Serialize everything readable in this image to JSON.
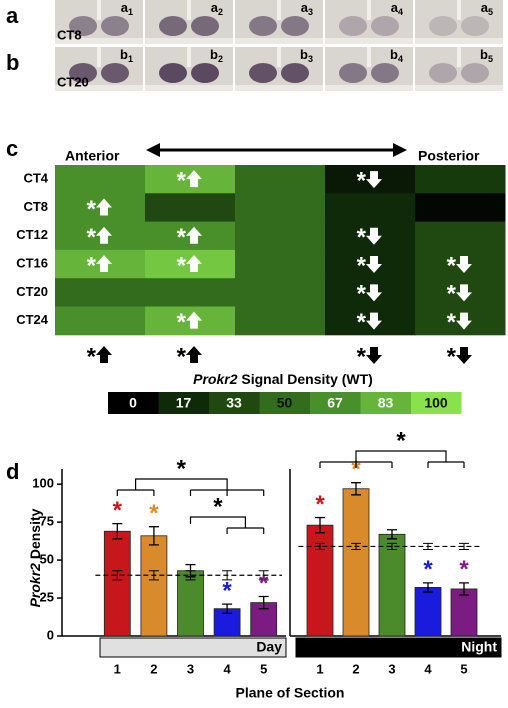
{
  "panel_a": {
    "letter": "a",
    "label": "CT8",
    "images": [
      {
        "letter": "a",
        "sub": "1"
      },
      {
        "letter": "a",
        "sub": "2"
      },
      {
        "letter": "a",
        "sub": "3"
      },
      {
        "letter": "a",
        "sub": "4"
      },
      {
        "letter": "a",
        "sub": "5"
      }
    ]
  },
  "panel_b": {
    "letter": "b",
    "label": "CT20",
    "images": [
      {
        "letter": "b",
        "sub": "1"
      },
      {
        "letter": "b",
        "sub": "2"
      },
      {
        "letter": "b",
        "sub": "3"
      },
      {
        "letter": "b",
        "sub": "4"
      },
      {
        "letter": "b",
        "sub": "5"
      }
    ]
  },
  "panel_c": {
    "letter": "c",
    "left_label": "Anterior",
    "right_label": "Posterior",
    "asterisk": "*",
    "rows": [
      "CT4",
      "CT8",
      "CT12",
      "CT16",
      "CT20",
      "CT24"
    ],
    "values": [
      [
        67,
        83,
        50,
        10,
        25
      ],
      [
        67,
        33,
        50,
        17,
        3
      ],
      [
        67,
        67,
        50,
        17,
        33
      ],
      [
        83,
        90,
        50,
        17,
        33
      ],
      [
        50,
        50,
        50,
        17,
        33
      ],
      [
        67,
        83,
        50,
        17,
        33
      ]
    ],
    "arrows": [
      [
        null,
        "up",
        null,
        "down",
        null
      ],
      [
        "up",
        null,
        null,
        null,
        null
      ],
      [
        "up",
        "up",
        null,
        "down",
        null
      ],
      [
        "up",
        "up",
        null,
        "down",
        "down"
      ],
      [
        null,
        null,
        null,
        "down",
        "down"
      ],
      [
        null,
        "up",
        null,
        "down",
        "down"
      ]
    ],
    "summary_arrows": [
      "up",
      "up",
      null,
      "down",
      "down"
    ],
    "colorbar": {
      "title_gene": "Prokr2",
      "title": "Signal Density (WT)",
      "ticks": [
        0,
        17,
        33,
        50,
        67,
        83,
        100
      ],
      "colors": [
        "#000000",
        "#0f2a08",
        "#1f4911",
        "#336c1d",
        "#4a902a",
        "#66b53a",
        "#88e24c"
      ]
    }
  },
  "panel_d": {
    "letter": "d"
  },
  "chart_data": [
    {
      "type": "bar",
      "annotation": "Day",
      "ylabel_gene": "Prokr2",
      "ylabel": "Density",
      "xlabel": "Plane of Section",
      "categories": [
        "1",
        "2",
        "3",
        "4",
        "5"
      ],
      "values": [
        69,
        66,
        43,
        18,
        22
      ],
      "errors": [
        5,
        6,
        4,
        3,
        4
      ],
      "colors": [
        "#c8161d",
        "#d98b2c",
        "#4b8b2b",
        "#1b1bde",
        "#7c1b82"
      ],
      "baseline_values": [
        40,
        40,
        40,
        40,
        40
      ],
      "baseline_errors": [
        3,
        3,
        3,
        3,
        3
      ],
      "asterisk": "*",
      "bar_asterisks": [
        true,
        true,
        false,
        true,
        true
      ],
      "significance": [
        {
          "group1": [
            0,
            1
          ],
          "group2": [
            2,
            3,
            4
          ],
          "label": "*"
        },
        {
          "group1": [
            2
          ],
          "group2": [
            3,
            4
          ],
          "label": "*"
        }
      ],
      "ylim": [
        0,
        110
      ],
      "yticks": [
        0,
        25,
        50,
        75,
        100
      ]
    },
    {
      "type": "bar",
      "annotation": "Night",
      "categories": [
        "1",
        "2",
        "3",
        "4",
        "5"
      ],
      "values": [
        73,
        97,
        67,
        32,
        31
      ],
      "errors": [
        5,
        4,
        3,
        3,
        4
      ],
      "colors": [
        "#c8161d",
        "#d98b2c",
        "#4b8b2b",
        "#1b1bde",
        "#7c1b82"
      ],
      "baseline_values": [
        59,
        59,
        59,
        59,
        59
      ],
      "baseline_errors": [
        2,
        2,
        2,
        2,
        2
      ],
      "asterisk": "*",
      "bar_asterisks": [
        true,
        true,
        false,
        true,
        true
      ],
      "significance": [
        {
          "group1": [
            0,
            1,
            2
          ],
          "group2": [
            3,
            4
          ],
          "label": "*"
        }
      ],
      "ylim": [
        0,
        110
      ]
    }
  ]
}
